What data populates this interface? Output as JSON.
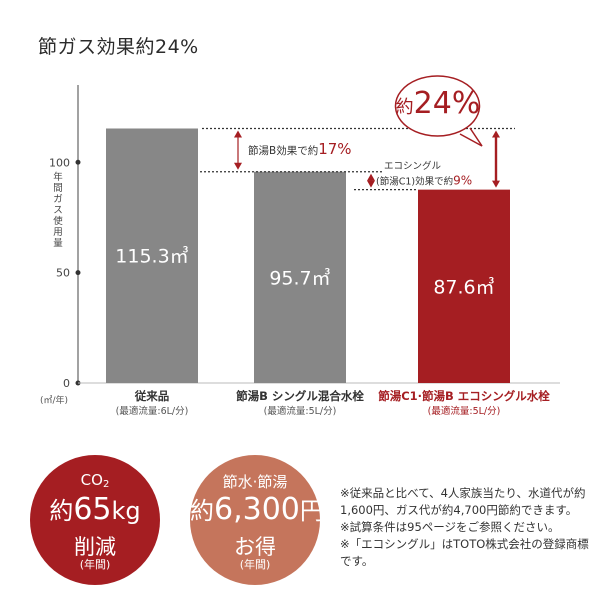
{
  "title": "節ガス効果約24%",
  "colors": {
    "gray": "#878787",
    "red": "#a51e22",
    "tan": "#c5755c",
    "accent_text": "#a51e22"
  },
  "chart_data": {
    "type": "bar",
    "ylabel": "年間ガス使用量",
    "unit": "(㎥/年)",
    "ylim": [
      0,
      135
    ],
    "yticks": [
      0,
      50,
      100
    ],
    "categories": [
      {
        "name": "従来品",
        "sub": "(最適流量:6L/分)",
        "highlight": false
      },
      {
        "name": "節湯B シングル混合水栓",
        "sub": "(最適流量:5L/分)",
        "highlight": false
      },
      {
        "name": "節湯C1·節湯B エコシングル水栓",
        "sub": "(最適流量:5L/分)",
        "highlight": true
      }
    ],
    "values": [
      115.3,
      95.7,
      87.6
    ],
    "value_labels": [
      "115.3㎥",
      "95.7㎥",
      "87.6㎥"
    ],
    "annotations": {
      "b_effect": {
        "text": "節湯B効果で約",
        "value": "17%"
      },
      "eco_name": "エコシングル",
      "eco_effect": {
        "text": "(節湯C1)効果で約",
        "value": "9%"
      }
    }
  },
  "callout": {
    "prefix": "約",
    "value": "24%"
  },
  "circles": [
    {
      "line1": "CO",
      "line1_sub": "2",
      "prefix": "約",
      "num": "65",
      "unit": "kg",
      "line3": "削減",
      "line4": "(年間)"
    },
    {
      "line1": "節水·節湯",
      "prefix": "約",
      "num": "6,300",
      "unit": "円",
      "line3": "お得",
      "line4": "(年間)"
    }
  ],
  "notes": [
    "※従来品と比べて、4人家族当たり、水道代が約1,600円、ガス代が約4,700円節約できます。",
    "※試算条件は95ページをご参照ください。",
    "※「エコシングル」はTOTO株式会社の登録商標です。"
  ]
}
